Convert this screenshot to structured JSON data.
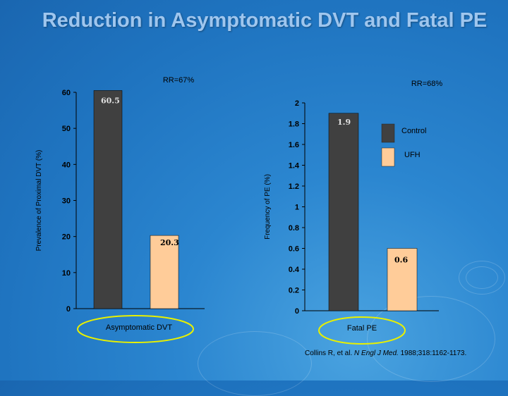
{
  "slide": {
    "title": "Reduction in Asymptomatic DVT and Fatal PE",
    "citation_prefix": "Collins R, et al. ",
    "citation_journal": "N Engl J Med.",
    "citation_suffix": " 1988;318:1162-1173."
  },
  "chart_data": [
    {
      "type": "bar",
      "title": "RR=67%",
      "ylabel": "Prevalence of Proximal DVT (%)",
      "xlabel": "Asymptomatic DVT",
      "ylim": [
        0,
        60
      ],
      "yticks": [
        0,
        10,
        20,
        30,
        40,
        50,
        60
      ],
      "series": [
        {
          "name": "Control",
          "value": 60.5,
          "color": "#404040",
          "label": "60.5"
        },
        {
          "name": "UFH",
          "value": 20.3,
          "color": "#ffcc99",
          "label": "20.3"
        }
      ]
    },
    {
      "type": "bar",
      "title": "RR=68%",
      "ylabel": "Frequency of PE (%)",
      "xlabel": "Fatal PE",
      "ylim": [
        0,
        2
      ],
      "yticks": [
        0,
        0.2,
        0.4,
        0.6,
        0.8,
        1,
        1.2,
        1.4,
        1.6,
        1.8,
        2
      ],
      "series": [
        {
          "name": "Control",
          "value": 1.9,
          "color": "#404040",
          "label": "1.9"
        },
        {
          "name": "UFH",
          "value": 0.6,
          "color": "#ffcc99",
          "label": "0.6"
        }
      ],
      "legend": {
        "position": "right",
        "items": [
          {
            "label": "Control",
            "color": "#404040"
          },
          {
            "label": "UFH",
            "color": "#ffcc99"
          }
        ]
      }
    }
  ]
}
